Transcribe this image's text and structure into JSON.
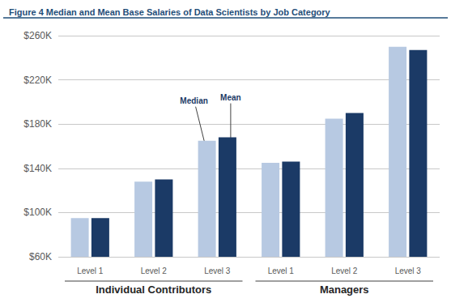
{
  "chart_data": {
    "type": "bar",
    "title": "Figure 4 Median and Mean Base Salaries of Data Scientists by Job Category",
    "categories": [
      "Level 1",
      "Level 2",
      "Level 3",
      "Level 1",
      "Level 2",
      "Level 3"
    ],
    "category_groups": [
      "Individual Contributors",
      "Managers"
    ],
    "series": [
      {
        "name": "Median",
        "color": "#b7c9e2",
        "values": [
          95,
          128,
          165,
          145,
          185,
          250
        ]
      },
      {
        "name": "Mean",
        "color": "#1b3a66",
        "values": [
          95,
          130,
          168,
          146,
          190,
          247
        ]
      }
    ],
    "annotations": [
      {
        "text": "Median",
        "series": "Median",
        "category_index": 2
      },
      {
        "text": "Mean",
        "series": "Mean",
        "category_index": 2
      }
    ],
    "ylim": [
      60,
      260
    ],
    "yticks": [
      {
        "value": 60,
        "label": "$60K"
      },
      {
        "value": 100,
        "label": "$100K"
      },
      {
        "value": 140,
        "label": "$140K"
      },
      {
        "value": 180,
        "label": "$180K"
      },
      {
        "value": 220,
        "label": "$220K"
      },
      {
        "value": 260,
        "label": "$260K"
      }
    ],
    "grid": true
  }
}
